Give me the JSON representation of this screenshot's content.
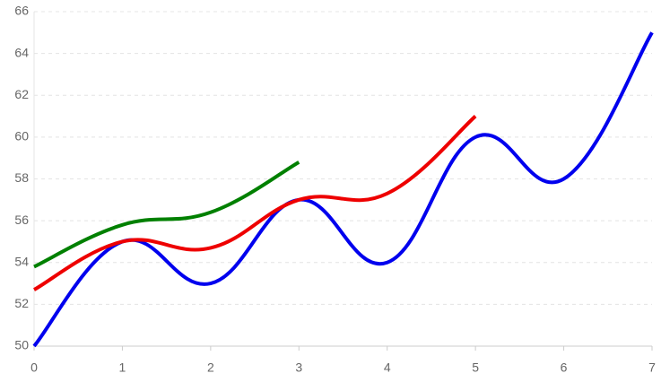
{
  "chart_data": {
    "type": "line",
    "x": [
      0,
      1,
      2,
      3,
      4,
      5,
      6,
      7
    ],
    "series": [
      {
        "color": "#0000ee",
        "values": [
          50,
          55,
          53,
          57,
          54,
          60,
          58,
          65
        ]
      },
      {
        "color": "#ee0000",
        "values": [
          52.7,
          55,
          54.7,
          57,
          57.3,
          61,
          null,
          null
        ]
      },
      {
        "color": "#008000",
        "values": [
          53.8,
          55.8,
          56.4,
          58.8,
          null,
          null,
          null,
          null
        ]
      }
    ],
    "xlim": [
      0,
      7
    ],
    "xticks": [
      0,
      1,
      2,
      3,
      4,
      5,
      6,
      7
    ],
    "ylim": [
      50,
      66
    ],
    "yticks": [
      50,
      52,
      54,
      56,
      58,
      60,
      62,
      64,
      66
    ],
    "grid": true
  }
}
